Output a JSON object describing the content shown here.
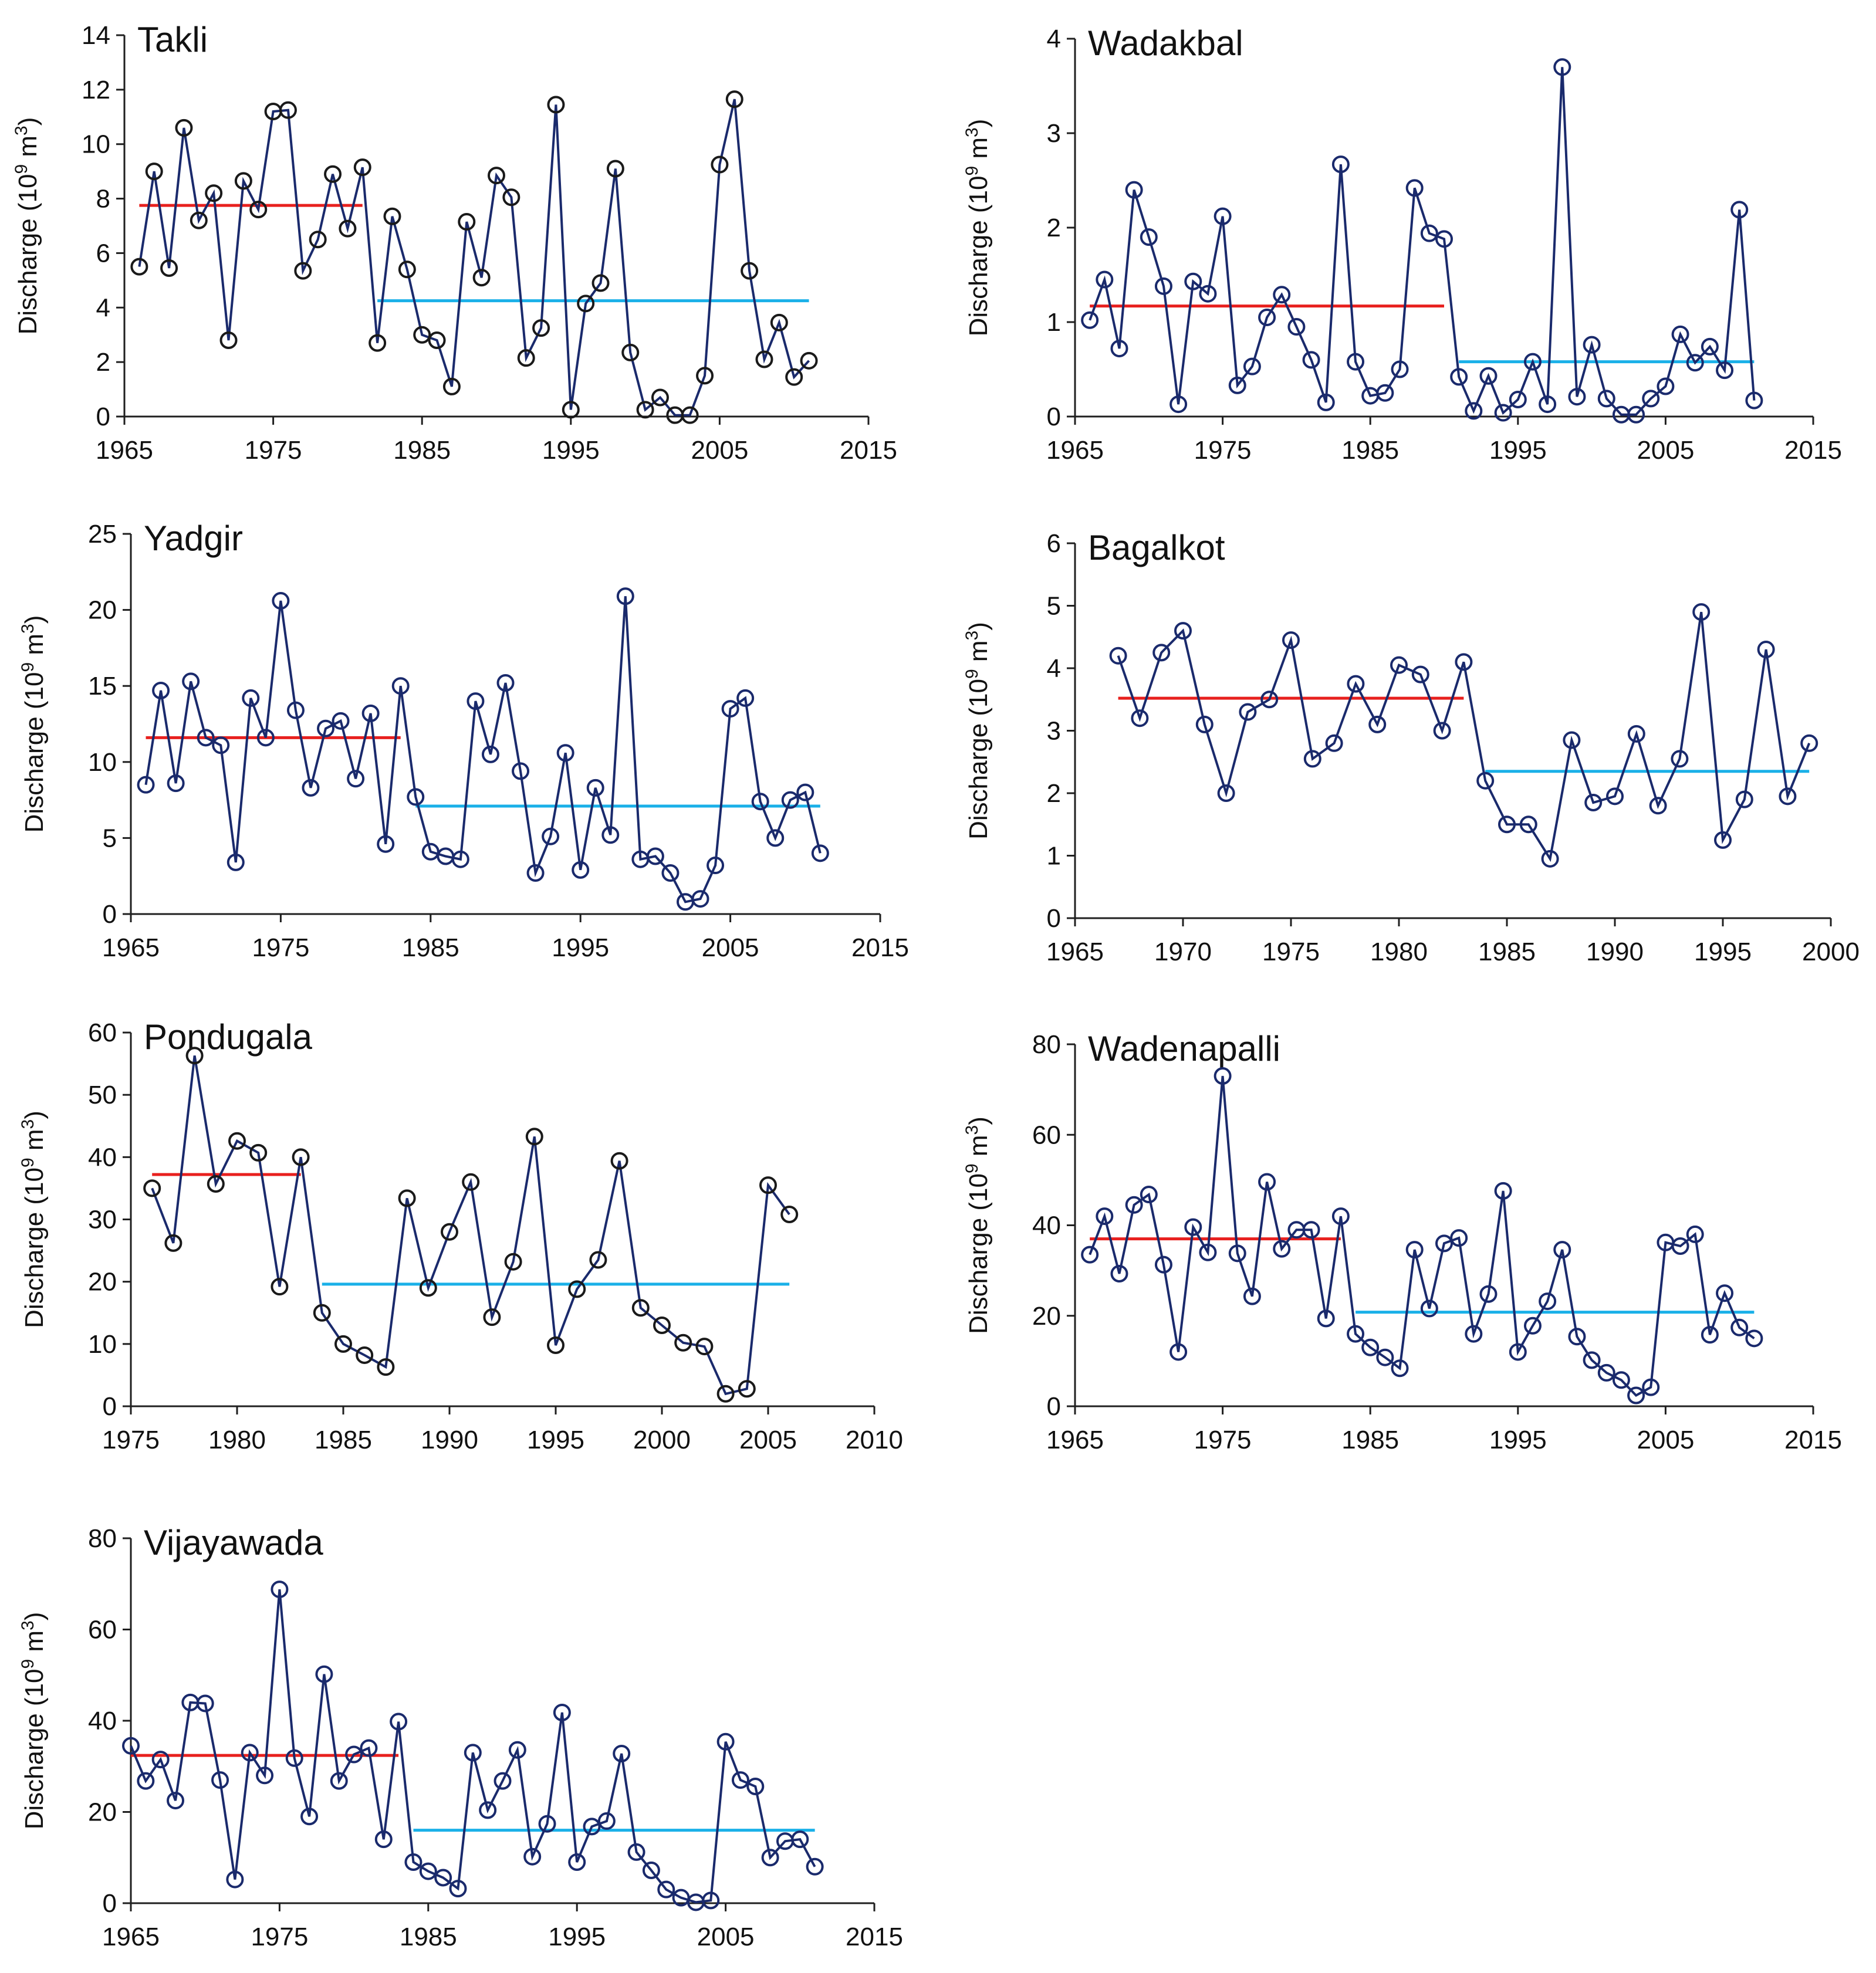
{
  "ylabel_prefix": "Discharge (10",
  "ylabel_exp": "9",
  "ylabel_mid": " m",
  "ylabel_exp2": "3",
  "ylabel_suffix": ")",
  "chart_data": [
    {
      "type": "line",
      "title": "Takli",
      "series_color": "#1a2a6c",
      "marker_color": "#1a1a1a",
      "xlim": [
        1965,
        2015
      ],
      "xticks": [
        1965,
        1975,
        1985,
        1995,
        2005,
        2015
      ],
      "ylim": [
        0,
        14
      ],
      "yticks": [
        0,
        2,
        4,
        6,
        8,
        10,
        12,
        14
      ],
      "x": [
        1966,
        1967,
        1968,
        1969,
        1970,
        1971,
        1972,
        1973,
        1974,
        1975,
        1976,
        1977,
        1978,
        1979,
        1980,
        1981,
        1982,
        1983,
        1984,
        1985,
        1986,
        1987,
        1988,
        1989,
        1990,
        1991,
        1992,
        1993,
        1994,
        1995,
        1996,
        1997,
        1998,
        1999,
        2000,
        2001,
        2002,
        2003,
        2004,
        2005,
        2006,
        2007,
        2008,
        2009,
        2010,
        2011
      ],
      "values": [
        5.5,
        9.0,
        5.45,
        10.6,
        7.2,
        8.2,
        2.8,
        8.65,
        7.6,
        11.2,
        11.25,
        5.35,
        6.5,
        8.9,
        6.9,
        9.15,
        2.7,
        7.35,
        5.4,
        3.0,
        2.8,
        1.1,
        7.15,
        5.1,
        8.85,
        8.05,
        2.15,
        3.25,
        11.45,
        0.25,
        4.15,
        4.9,
        9.1,
        2.35,
        0.25,
        0.7,
        0.05,
        0.05,
        1.5,
        9.25,
        11.65,
        5.35,
        2.1,
        3.45,
        1.45,
        2.05
      ],
      "mean_pre": {
        "x": [
          1966,
          1981
        ],
        "value": 7.75
      },
      "mean_post": {
        "x": [
          1982,
          2011
        ],
        "value": 4.25
      }
    },
    {
      "type": "line",
      "title": "Wadakbal",
      "series_color": "#1a2a6c",
      "marker_color": "#1a2a6c",
      "xlim": [
        1965,
        2015
      ],
      "xticks": [
        1965,
        1975,
        1985,
        1995,
        2005,
        2015
      ],
      "ylim": [
        0,
        4
      ],
      "yticks": [
        0,
        1,
        2,
        3,
        4
      ],
      "x": [
        1966,
        1967,
        1968,
        1969,
        1970,
        1971,
        1972,
        1973,
        1974,
        1975,
        1976,
        1977,
        1978,
        1979,
        1980,
        1981,
        1982,
        1983,
        1984,
        1985,
        1986,
        1987,
        1988,
        1989,
        1990,
        1991,
        1992,
        1993,
        1994,
        1995,
        1996,
        1997,
        1998,
        1999,
        2000,
        2001,
        2002,
        2003,
        2004,
        2005,
        2006,
        2007,
        2008,
        2009,
        2010,
        2011
      ],
      "values": [
        1.02,
        1.45,
        0.72,
        2.4,
        1.9,
        1.38,
        0.13,
        1.43,
        1.3,
        2.12,
        0.33,
        0.53,
        1.05,
        1.29,
        0.95,
        0.6,
        0.15,
        2.67,
        0.58,
        0.22,
        0.25,
        0.5,
        2.42,
        1.94,
        1.88,
        0.42,
        0.06,
        0.43,
        0.04,
        0.18,
        0.58,
        0.13,
        3.7,
        0.21,
        0.76,
        0.19,
        0.02,
        0.02,
        0.19,
        0.32,
        0.87,
        0.57,
        0.74,
        0.49,
        2.19,
        0.17
      ],
      "mean_pre": {
        "x": [
          1966,
          1990
        ],
        "value": 1.17
      },
      "mean_post": {
        "x": [
          1991,
          2011
        ],
        "value": 0.58
      }
    },
    {
      "type": "line",
      "title": "Yadgir",
      "series_color": "#1a2a6c",
      "marker_color": "#1a2a6c",
      "xlim": [
        1965,
        2015
      ],
      "xticks": [
        1965,
        1975,
        1985,
        1995,
        2005,
        2015
      ],
      "ylim": [
        0,
        25
      ],
      "yticks": [
        0,
        5,
        10,
        15,
        20,
        25
      ],
      "x": [
        1966,
        1967,
        1968,
        1969,
        1970,
        1971,
        1972,
        1973,
        1974,
        1975,
        1976,
        1977,
        1978,
        1979,
        1980,
        1981,
        1982,
        1983,
        1984,
        1985,
        1986,
        1987,
        1988,
        1989,
        1990,
        1991,
        1992,
        1993,
        1994,
        1995,
        1996,
        1997,
        1998,
        1999,
        2000,
        2001,
        2002,
        2003,
        2004,
        2005,
        2006,
        2007,
        2008,
        2009,
        2010,
        2011
      ],
      "values": [
        8.5,
        14.7,
        8.6,
        15.3,
        11.6,
        11.1,
        3.4,
        14.2,
        11.6,
        20.6,
        13.4,
        8.3,
        12.2,
        12.7,
        8.9,
        13.2,
        4.6,
        15.0,
        7.7,
        4.1,
        3.8,
        3.6,
        14.0,
        10.5,
        15.2,
        9.4,
        2.7,
        5.1,
        10.6,
        2.9,
        8.3,
        5.2,
        20.9,
        3.6,
        3.8,
        2.7,
        0.8,
        1.0,
        3.2,
        13.5,
        14.2,
        7.4,
        5.0,
        7.5,
        8.0,
        4.0
      ],
      "mean_pre": {
        "x": [
          1966,
          1983
        ],
        "value": 11.6
      },
      "mean_post": {
        "x": [
          1984,
          2011
        ],
        "value": 7.1
      }
    },
    {
      "type": "line",
      "title": "Bagalkot",
      "series_color": "#1a2a6c",
      "marker_color": "#1a2a6c",
      "xlim": [
        1965,
        2000
      ],
      "xticks": [
        1965,
        1970,
        1975,
        1980,
        1985,
        1990,
        1995,
        2000
      ],
      "ylim": [
        0,
        6
      ],
      "yticks": [
        0,
        1,
        2,
        3,
        4,
        5,
        6
      ],
      "x": [
        1967,
        1968,
        1969,
        1970,
        1971,
        1972,
        1973,
        1974,
        1975,
        1976,
        1977,
        1978,
        1979,
        1980,
        1981,
        1982,
        1983,
        1984,
        1985,
        1986,
        1987,
        1988,
        1989,
        1990,
        1991,
        1992,
        1993,
        1994,
        1995,
        1996,
        1997,
        1998,
        1999
      ],
      "values": [
        4.2,
        3.2,
        4.25,
        4.6,
        3.1,
        2.0,
        3.3,
        3.5,
        4.45,
        2.55,
        2.8,
        3.75,
        3.1,
        4.05,
        3.9,
        3.0,
        4.1,
        2.2,
        1.5,
        1.5,
        0.95,
        2.85,
        1.85,
        1.95,
        2.95,
        1.8,
        2.55,
        4.9,
        1.25,
        1.9,
        4.3,
        1.95,
        2.8
      ],
      "mean_pre": {
        "x": [
          1967,
          1983
        ],
        "value": 3.52
      },
      "mean_post": {
        "x": [
          1984,
          1999
        ],
        "value": 2.35
      }
    },
    {
      "type": "line",
      "title": "Pondugala",
      "series_color": "#1a2a6c",
      "marker_color": "#1a1a1a",
      "xlim": [
        1975,
        2010
      ],
      "xticks": [
        1975,
        1980,
        1985,
        1990,
        1995,
        2000,
        2005,
        2010
      ],
      "ylim": [
        0,
        60
      ],
      "yticks": [
        0,
        10,
        20,
        30,
        40,
        50,
        60
      ],
      "x": [
        1976,
        1977,
        1978,
        1979,
        1980,
        1981,
        1982,
        1983,
        1984,
        1985,
        1986,
        1987,
        1988,
        1989,
        1990,
        1991,
        1992,
        1993,
        1994,
        1995,
        1996,
        1997,
        1998,
        1999,
        2000,
        2001,
        2002,
        2003,
        2004,
        2005,
        2006
      ],
      "values": [
        35.0,
        26.2,
        56.3,
        35.7,
        42.6,
        40.7,
        19.2,
        40.0,
        15.0,
        10.0,
        8.2,
        6.3,
        33.4,
        19.0,
        28.0,
        36.0,
        14.3,
        23.2,
        43.3,
        9.8,
        18.8,
        23.5,
        39.4,
        15.8,
        13.0,
        10.2,
        9.6,
        2.0,
        2.8,
        35.5,
        30.8
      ],
      "mean_pre": {
        "x": [
          1976,
          1983
        ],
        "value": 37.2
      },
      "mean_post": {
        "x": [
          1984,
          2006
        ],
        "value": 19.6
      }
    },
    {
      "type": "line",
      "title": "Wadenapalli",
      "series_color": "#1a2a6c",
      "marker_color": "#1a2a6c",
      "xlim": [
        1965,
        2015
      ],
      "xticks": [
        1965,
        1975,
        1985,
        1995,
        2005,
        2015
      ],
      "ylim": [
        0,
        80
      ],
      "yticks": [
        0,
        20,
        40,
        60,
        80
      ],
      "x": [
        1966,
        1967,
        1968,
        1969,
        1970,
        1971,
        1972,
        1973,
        1974,
        1975,
        1976,
        1977,
        1978,
        1979,
        1980,
        1981,
        1982,
        1983,
        1984,
        1985,
        1986,
        1987,
        1988,
        1989,
        1990,
        1991,
        1992,
        1993,
        1994,
        1995,
        1996,
        1997,
        1998,
        1999,
        2000,
        2001,
        2002,
        2003,
        2004,
        2005,
        2006,
        2007,
        2008,
        2009,
        2010,
        2011
      ],
      "values": [
        33.5,
        42.0,
        29.3,
        44.5,
        46.8,
        31.3,
        12.0,
        39.6,
        34.0,
        73.0,
        33.8,
        24.3,
        49.6,
        34.8,
        39.0,
        39.0,
        19.4,
        42.0,
        16.0,
        13.0,
        10.8,
        8.4,
        34.6,
        21.6,
        36.0,
        37.2,
        16.0,
        24.8,
        47.6,
        12.0,
        17.8,
        23.2,
        34.6,
        15.4,
        10.2,
        7.4,
        5.8,
        2.4,
        4.2,
        36.2,
        35.4,
        38.0,
        15.8,
        25.0,
        17.4,
        15.0
      ],
      "mean_pre": {
        "x": [
          1966,
          1983
        ],
        "value": 37.0
      },
      "mean_post": {
        "x": [
          1984,
          2011
        ],
        "value": 20.8
      }
    },
    {
      "type": "line",
      "title": "Vijayawada",
      "series_color": "#1a2a6c",
      "marker_color": "#1a2a6c",
      "xlim": [
        1965,
        2015
      ],
      "xticks": [
        1965,
        1975,
        1985,
        1995,
        2005,
        2015
      ],
      "ylim": [
        0,
        80
      ],
      "yticks": [
        0,
        20,
        40,
        60,
        80
      ],
      "x": [
        1965,
        1966,
        1967,
        1968,
        1969,
        1970,
        1971,
        1972,
        1973,
        1974,
        1975,
        1976,
        1977,
        1978,
        1979,
        1980,
        1981,
        1982,
        1983,
        1984,
        1985,
        1986,
        1987,
        1988,
        1989,
        1990,
        1991,
        1992,
        1993,
        1994,
        1995,
        1996,
        1997,
        1998,
        1999,
        2000,
        2001,
        2002,
        2003,
        2004,
        2005,
        2006,
        2007,
        2008,
        2009,
        2010,
        2011
      ],
      "values": [
        34.5,
        26.8,
        31.5,
        22.5,
        44.0,
        43.8,
        27.0,
        5.2,
        33.0,
        28.0,
        68.8,
        31.8,
        19.0,
        50.2,
        26.8,
        32.6,
        34.0,
        14.0,
        39.8,
        9.0,
        7.0,
        5.6,
        3.2,
        33.0,
        20.4,
        26.8,
        33.6,
        10.2,
        17.4,
        41.8,
        9.0,
        16.8,
        18.0,
        32.8,
        11.2,
        7.2,
        3.0,
        1.2,
        0.2,
        0.6,
        35.4,
        27.0,
        25.6,
        10.0,
        13.6,
        14.0,
        8.0
      ],
      "mean_pre": {
        "x": [
          1965,
          1983
        ],
        "value": 32.4
      },
      "mean_post": {
        "x": [
          1984,
          2011
        ],
        "value": 16.0
      }
    }
  ]
}
